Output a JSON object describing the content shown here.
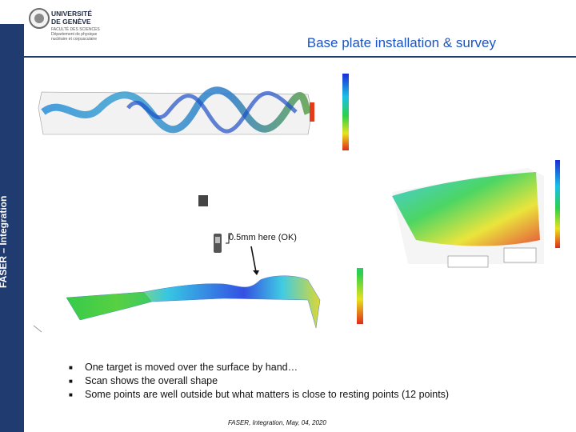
{
  "sidebar": {
    "label": "FASER – Integration"
  },
  "logo": {
    "name_line1": "UNIVERSITÉ",
    "name_line2": "DE GENÈVE",
    "sub_line1": "FACULTÉ DES SCIENCES",
    "sub_line2": "Département de physique",
    "sub_line3": "nucléaire et corpusculaire"
  },
  "slide": {
    "title": "Base plate installation & survey"
  },
  "annotation": {
    "note": "0.5mm here (OK)"
  },
  "bullets": [
    "One target is moved over the surface by hand…",
    "Scan shows the overall shape",
    "Some points are well outside but what matters is close to resting points (12 points)"
  ],
  "footer": {
    "text": "FASER, Integration, May, 04, 2020"
  }
}
